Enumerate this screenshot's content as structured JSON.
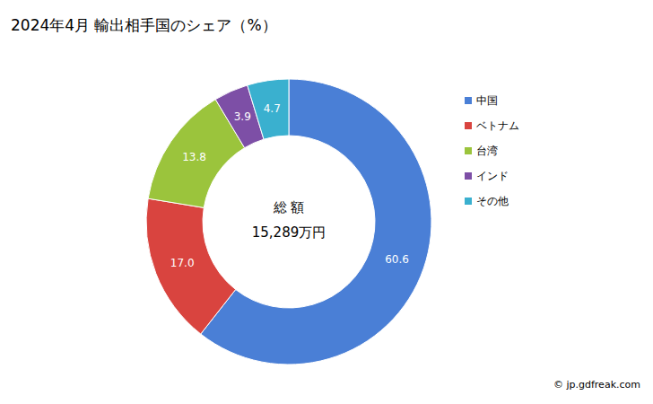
{
  "chart_data": {
    "type": "pie",
    "title": "2024年4月 輸出相手国のシェア（%）",
    "categories": [
      "中国",
      "ベトナム",
      "台湾",
      "インド",
      "その他"
    ],
    "values": [
      60.6,
      17.0,
      13.8,
      3.9,
      4.7
    ],
    "value_labels": [
      "60.6",
      "17.0",
      "13.8",
      "3.9",
      "4.7"
    ],
    "colors": [
      "#4a7fd6",
      "#d9443f",
      "#9bc43c",
      "#7d4fa6",
      "#3ab0cf"
    ],
    "data_labels": true,
    "legend": "right",
    "annotations": [
      "総 額",
      "15,289万円",
      "© jp.gdfreak.com"
    ]
  }
}
